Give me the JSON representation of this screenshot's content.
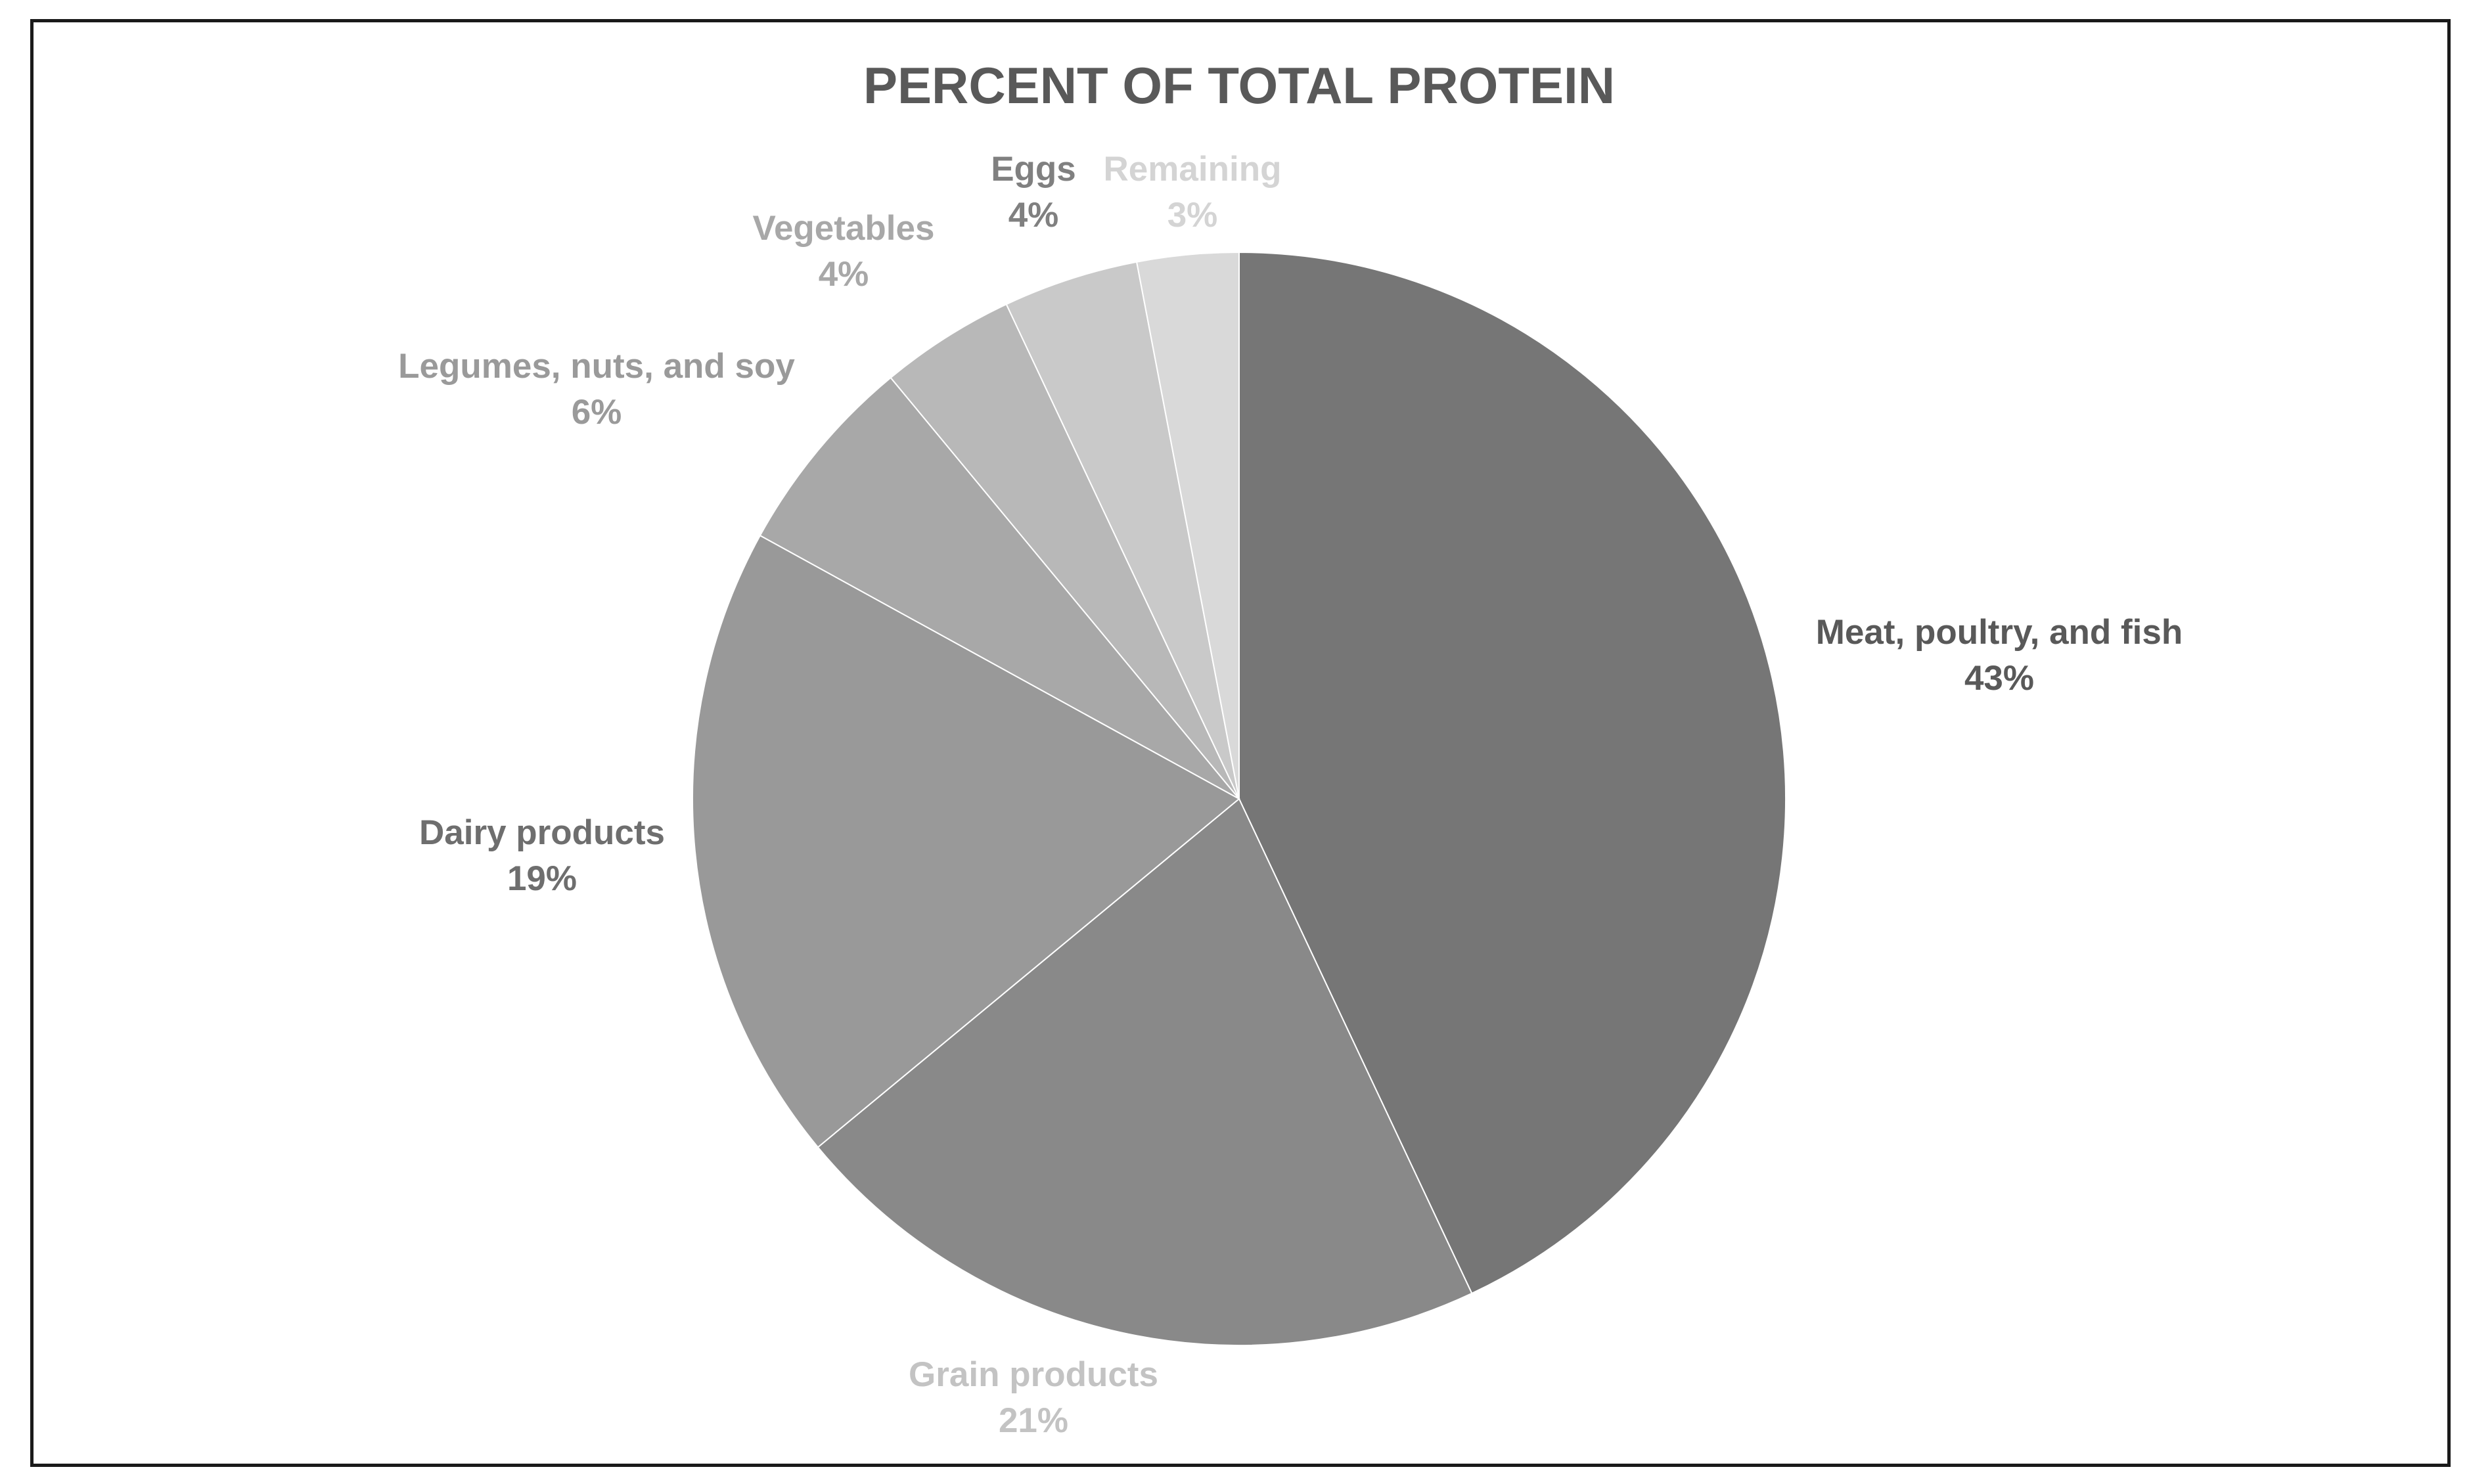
{
  "chart_data": {
    "type": "pie",
    "title": "PERCENT OF TOTAL PROTEIN",
    "slices": [
      {
        "label": "Meat, poultry, and fish",
        "value": 43,
        "display": "43%",
        "color": "#767676",
        "label_color": "#595959"
      },
      {
        "label": "Grain products",
        "value": 21,
        "display": "21%",
        "color": "#898989",
        "label_color": "#c3c3c3"
      },
      {
        "label": "Dairy products",
        "value": 19,
        "display": "19%",
        "color": "#999999",
        "label_color": "#6e6e6e"
      },
      {
        "label": "Legumes, nuts, and soy",
        "value": 6,
        "display": "6%",
        "color": "#a8a8a8",
        "label_color": "#9a9a9a"
      },
      {
        "label": "Vegetables",
        "value": 4,
        "display": "4%",
        "color": "#b8b8b8",
        "label_color": "#a8a8a8"
      },
      {
        "label": "Eggs",
        "value": 4,
        "display": "4%",
        "color": "#c9c9c9",
        "label_color": "#808080"
      },
      {
        "label": "Remaining",
        "value": 3,
        "display": "3%",
        "color": "#d9d9d9",
        "label_color": "#d4d4d4"
      }
    ],
    "start_angle": "12 o'clock",
    "direction": "clockwise",
    "legend": "none (data labels)"
  }
}
